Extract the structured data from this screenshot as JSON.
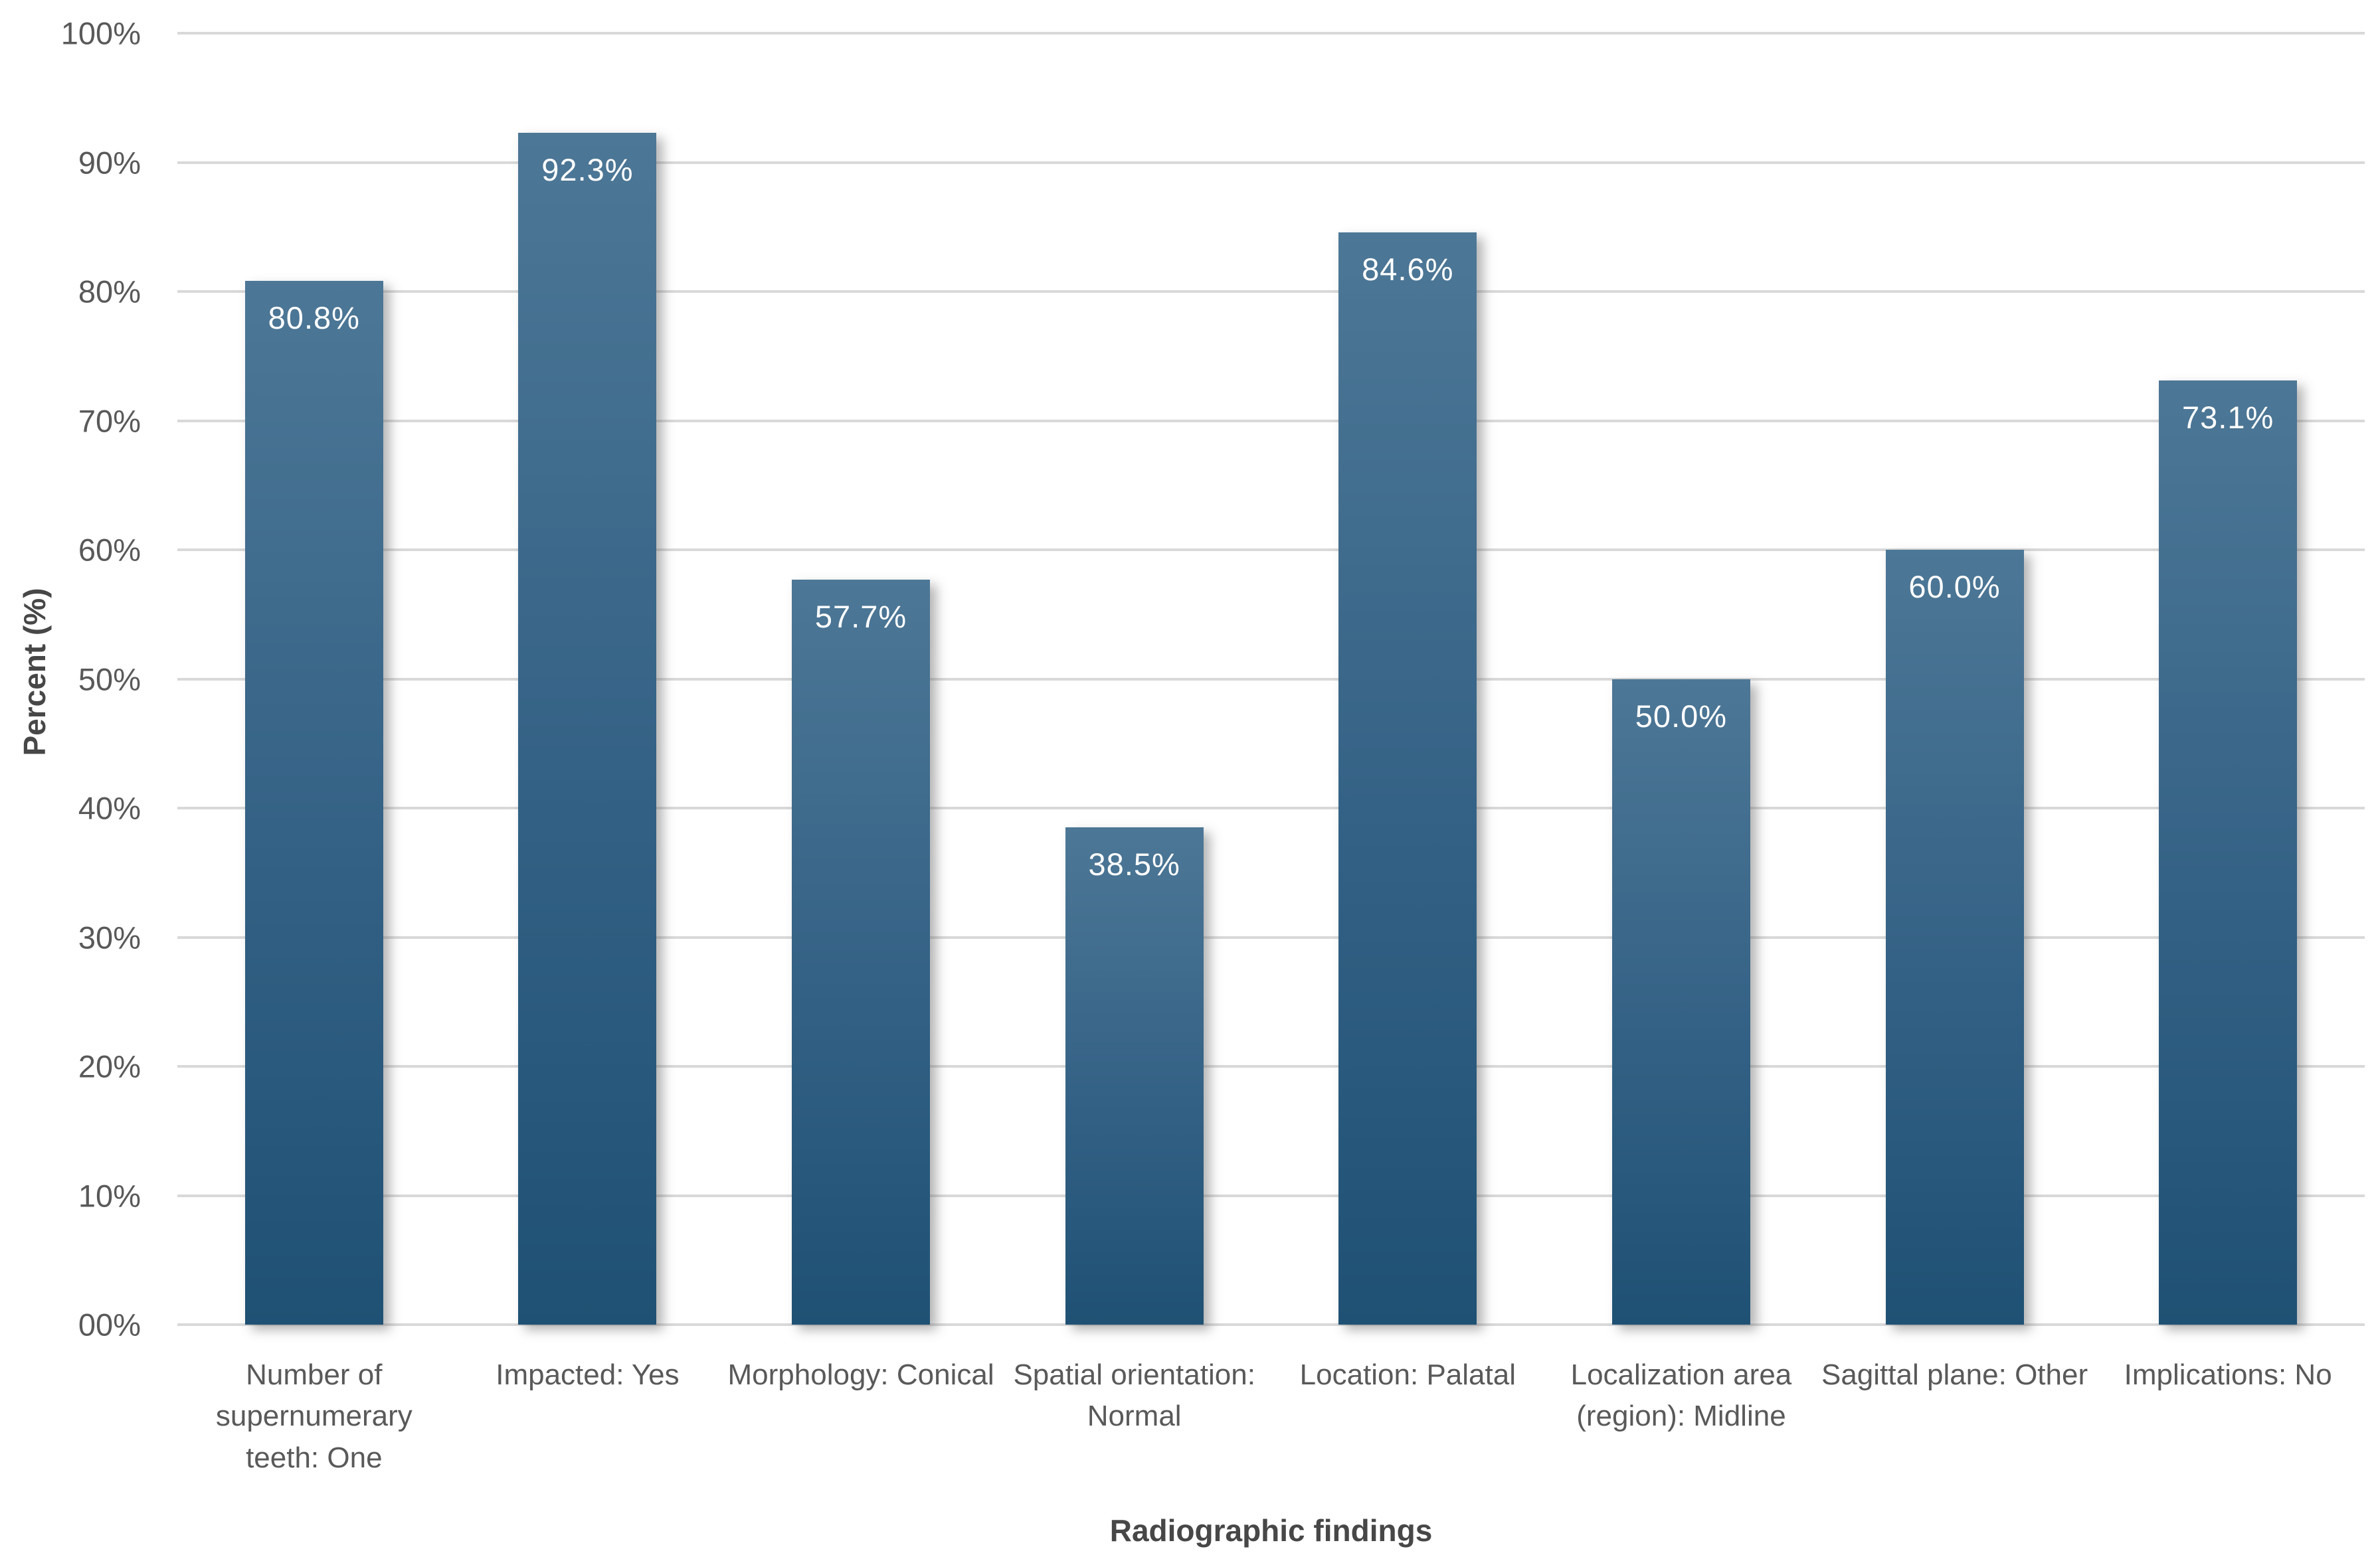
{
  "figure": {
    "background": "#ffffff"
  },
  "chart_data": {
    "type": "bar",
    "title": "",
    "xlabel": "Radiographic findings",
    "ylabel": "Percent (%)",
    "categories": [
      "Number of supernumerary teeth: One",
      "Impacted: Yes",
      "Morphology: Conical",
      "Spatial orientation: Normal",
      "Location: Palatal",
      "Localization area (region): Midline",
      "Sagittal plane: Other",
      "Implications: No"
    ],
    "values": [
      80.8,
      92.3,
      57.7,
      38.5,
      84.6,
      50.0,
      60.0,
      73.1
    ],
    "value_labels": [
      "80.8%",
      "92.3%",
      "57.7%",
      "38.5%",
      "84.6%",
      "50.0%",
      "60.0%",
      "73.1%"
    ],
    "ylim": [
      0,
      100
    ],
    "ytick_step": 10,
    "ytick_labels": [
      "00%",
      "10%",
      "20%",
      "30%",
      "40%",
      "50%",
      "60%",
      "70%",
      "80%",
      "90%",
      "100%"
    ],
    "grid": true,
    "legend": false,
    "colors": {
      "bar_gradient_top": "#4d7796",
      "bar_gradient_bottom": "#1f5174",
      "gridline": "#d9d9d9",
      "tick_text": "#595959",
      "axis_title_text": "#474747",
      "value_label_text": "#ffffff"
    }
  }
}
